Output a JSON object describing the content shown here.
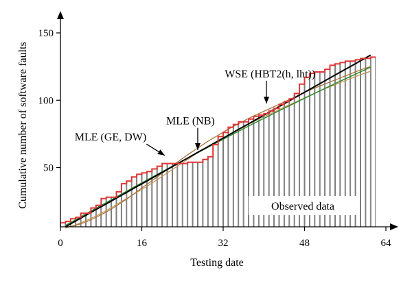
{
  "chart_data": {
    "type": "bar",
    "xlabel": "Testing date",
    "ylabel": "Cumulative number of software faults",
    "xlim": [
      0,
      64
    ],
    "ylim": [
      6,
      150
    ],
    "xticks": [
      0,
      16,
      32,
      48,
      64
    ],
    "yticks": [
      50,
      100,
      150
    ],
    "observed_label": "Observed data",
    "observed": {
      "x": [
        1,
        2,
        3,
        4,
        5,
        6,
        7,
        8,
        9,
        10,
        11,
        12,
        13,
        14,
        15,
        16,
        17,
        18,
        19,
        20,
        21,
        22,
        23,
        24,
        25,
        26,
        27,
        28,
        29,
        30,
        31,
        32,
        33,
        34,
        35,
        36,
        37,
        38,
        39,
        40,
        41,
        42,
        43,
        44,
        45,
        46,
        47,
        48,
        49,
        50,
        51,
        52,
        53,
        54,
        55,
        56,
        57,
        58,
        59,
        60,
        61,
        62
      ],
      "y": [
        9,
        10,
        12,
        13,
        16,
        16,
        20,
        22,
        27,
        28,
        28,
        32,
        38,
        40,
        43,
        45,
        46,
        47,
        49,
        51,
        53,
        53,
        53,
        53,
        53,
        54,
        54,
        54,
        56,
        58,
        67,
        73,
        76,
        80,
        82,
        84,
        84,
        86,
        88,
        89,
        90,
        92,
        94,
        97,
        99,
        101,
        105,
        112,
        117,
        120,
        121,
        121,
        123,
        126,
        127,
        128,
        129,
        129,
        130,
        131,
        131,
        132
      ]
    },
    "series": [
      {
        "values": [
          6,
          10.3,
          14.5,
          18.8,
          23,
          27.3,
          31.5,
          35.8,
          40,
          44.3,
          48.5,
          52.8,
          57,
          61.3,
          65.5,
          69.8,
          74,
          78.3,
          82.5,
          86.8,
          91,
          95.3,
          99.5,
          103.8,
          108,
          112.3,
          116.5,
          120.8,
          125,
          129.3,
          133.5
        ],
        "color": "#000000",
        "width": 2
      },
      {
        "values": [
          7,
          11.3,
          15.6,
          19.8,
          24,
          28.2,
          32.4,
          36.6,
          40.7,
          44.8,
          48.9,
          53,
          57,
          61,
          65,
          69,
          73,
          76.9,
          80.8,
          84.6,
          88.4,
          92.2,
          95.9,
          99.6,
          103.3,
          106.9,
          110.5,
          114.1,
          117.6,
          121.1,
          124.6
        ],
        "color": "#2e8b2e",
        "width": 1.5
      },
      {
        "values": [
          5.5,
          7,
          9.5,
          13,
          17,
          21.5,
          26.5,
          32,
          37.5,
          43,
          48.5,
          54,
          59.5,
          64.5,
          69.5,
          74,
          78.5,
          82.5,
          86.5,
          90,
          93.5,
          97,
          100.5,
          104,
          107.5,
          110.5,
          113.5,
          116.5,
          119.5,
          122.5,
          125
        ],
        "color": "#a8743c",
        "width": 1.3
      },
      {
        "values": [
          5,
          7.5,
          10.5,
          14,
          18,
          22.5,
          27,
          31.5,
          36,
          41,
          46,
          51,
          56,
          61,
          65.5,
          70,
          74,
          78,
          82,
          86,
          89.5,
          93,
          96.5,
          100,
          103.5,
          107,
          110,
          113,
          116,
          119,
          121.5
        ],
        "color": "#c29050",
        "width": 1.2
      }
    ],
    "series_x": [
      1,
      3,
      5,
      7,
      9,
      11,
      13,
      15,
      17,
      19,
      21,
      23,
      25,
      27,
      29,
      31,
      33,
      35,
      37,
      39,
      41,
      43,
      45,
      47,
      49,
      51,
      53,
      55,
      57,
      59,
      61
    ],
    "annotations": [
      {
        "text": "WSE (HBT2(h, lht))",
        "text_x": 32.3,
        "text_y": 117,
        "arrow_to_x": 40.5,
        "arrow_to_y": 97.5
      },
      {
        "text": "MLE (NB)",
        "text_x": 20.8,
        "text_y": 82,
        "arrow_to_x": 27,
        "arrow_to_y": 63
      },
      {
        "text": "MLE (GE, DW)",
        "text_x": 2.8,
        "text_y": 70,
        "arrow_to_x": 20.5,
        "arrow_to_y": 59
      }
    ]
  }
}
